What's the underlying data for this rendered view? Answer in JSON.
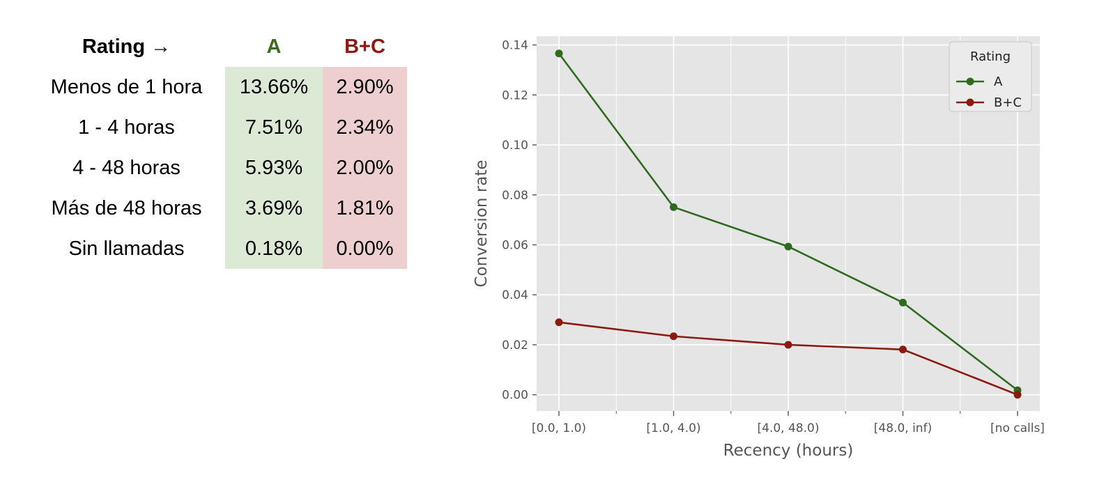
{
  "table": {
    "header": {
      "rating_label": "Rating →",
      "col_a": "A",
      "col_b": "B+C"
    },
    "rows": [
      {
        "label": "Menos de 1 hora",
        "a": "13.66%",
        "b": "2.90%"
      },
      {
        "label": "1 - 4 horas",
        "a": "7.51%",
        "b": "2.34%"
      },
      {
        "label": "4 - 48 horas",
        "a": "5.93%",
        "b": "2.00%"
      },
      {
        "label": "Más de 48 horas",
        "a": "3.69%",
        "b": "1.81%"
      },
      {
        "label": "Sin llamadas",
        "a": "0.18%",
        "b": "0.00%"
      }
    ],
    "colors": {
      "a_header": "#3d6b1e",
      "b_header": "#8b1a10",
      "a_fill": "#dce9d5",
      "b_fill": "#eecfcf"
    }
  },
  "chart_data": {
    "type": "line",
    "categories": [
      "[0.0, 1.0)",
      "[1.0, 4.0)",
      "[4.0, 48.0)",
      "[48.0, inf)",
      "[no calls]"
    ],
    "series": [
      {
        "name": "A",
        "color": "#2f6b1f",
        "values": [
          0.1366,
          0.0751,
          0.0593,
          0.0369,
          0.0018
        ]
      },
      {
        "name": "B+C",
        "color": "#8b1a10",
        "values": [
          0.029,
          0.0234,
          0.02,
          0.0181,
          0.0
        ]
      }
    ],
    "xlabel": "Recency (hours)",
    "ylabel": "Conversion rate",
    "ylim": [
      -0.0065,
      0.1435
    ],
    "yticks": [
      0.0,
      0.02,
      0.04,
      0.06,
      0.08,
      0.1,
      0.12,
      0.14
    ],
    "ytick_labels": [
      "0.00",
      "0.02",
      "0.04",
      "0.06",
      "0.08",
      "0.10",
      "0.12",
      "0.14"
    ],
    "legend": {
      "title": "Rating",
      "position": "top-right"
    },
    "grid": true,
    "background": "#e5e5e5"
  }
}
